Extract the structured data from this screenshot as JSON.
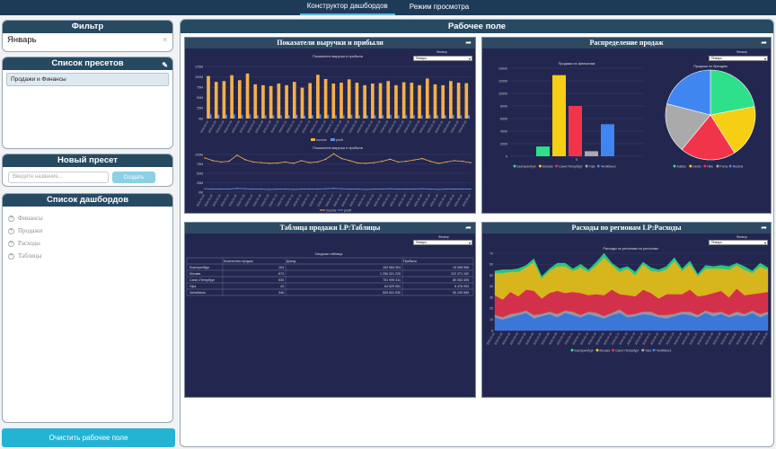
{
  "topnav": {
    "tabs": [
      {
        "label": "Конструктор дашбордов",
        "active": true
      },
      {
        "label": "Режим просмотра",
        "active": false
      }
    ]
  },
  "sidebar": {
    "filter": {
      "title": "Фильтр",
      "value": "Январь"
    },
    "presets": {
      "title": "Список пресетов",
      "items": [
        "Продажи и Финансы"
      ]
    },
    "new_preset": {
      "title": "Новый пресет",
      "placeholder": "Введите название...",
      "button": "Создать"
    },
    "dashboards": {
      "title": "Список дашбордов",
      "items": [
        "Финансы",
        "Продажи",
        "Расходы",
        "Таблицы"
      ]
    },
    "clear_button": "Очистить рабочее поле"
  },
  "workspace": {
    "title": "Рабочее поле",
    "widgets": {
      "revenue": {
        "title": "Показатели выручки и прибыли",
        "filter_label": "Фильтр",
        "filter_value": "Январь"
      },
      "distribution": {
        "title": "Распределение продаж",
        "filter_label": "Фильтр",
        "filter_value": "Январь"
      },
      "table": {
        "title": "Таблица продажи LP:Таблицы",
        "filter_label": "Фильтр",
        "filter_value": "Январь"
      },
      "expenses": {
        "title": "Расходы по регионам LP:Расходы",
        "filter_label": "Фильтр",
        "filter_value": "Январь"
      }
    }
  },
  "colors": {
    "income": "#f4b04a",
    "profit": "#5b8ee6",
    "widget_bg": "#232750",
    "header": "#274a63",
    "accent": "#25b3d4"
  },
  "regions": [
    "Екатеринбург",
    "Москва",
    "Санкт-Петербург",
    "Уфа",
    "Челябинск"
  ],
  "region_colors": [
    "#2ee08a",
    "#f6cf14",
    "#f2344a",
    "#aaaaaa",
    "#3f86f0"
  ],
  "chart_data": [
    {
      "type": "bar",
      "title": "Показатели выручки и прибыли",
      "series": [
        {
          "name": "income",
          "values": [
            102,
            88,
            90,
            104,
            92,
            108,
            82,
            80,
            78,
            84,
            80,
            88,
            74,
            85,
            105,
            95,
            84,
            86,
            94,
            86,
            80,
            84,
            85,
            90,
            80,
            87,
            86,
            80,
            96,
            82,
            80,
            90,
            86,
            85
          ]
        },
        {
          "name": "profit",
          "values": [
            10,
            9,
            9,
            10,
            9,
            10,
            8,
            8,
            8,
            8,
            8,
            9,
            7,
            8,
            10,
            9,
            8,
            8,
            9,
            8,
            8,
            8,
            8,
            9,
            8,
            8,
            8,
            8,
            9,
            8,
            8,
            9,
            8,
            8
          ]
        }
      ],
      "ylim": [
        0,
        125
      ],
      "yticks": [
        "125M",
        "100M",
        "75M",
        "50M",
        "25M",
        "0M"
      ],
      "legend": [
        "income",
        "profit"
      ],
      "xlabels": [
        "2023-01-01",
        "2023-01-02",
        "2023-01-03",
        "2023-01-04",
        "2023-01-05",
        "2023-01-06",
        "2023-01-07",
        "2023-01-08",
        "2023-01-09",
        "2023-01-10",
        "2023-01-11",
        "2023-01-12",
        "2023-01-13",
        "2023-01-14",
        "2023-01-15",
        "2023-01-16",
        "2023-01-17",
        "2023-01-18",
        "2023-01-19",
        "2023-01-20",
        "2023-01-21",
        "2023-01-22",
        "2023-01-23",
        "2023-01-24",
        "2023-01-25",
        "2023-01-26",
        "2023-01-27",
        "2023-01-28",
        "2023-01-29",
        "2023-01-30",
        "2023-01-31",
        "2023-02-01",
        "2023-02-02",
        "2023-02-03"
      ]
    },
    {
      "type": "line",
      "title": "Показатели выручки и прибыли",
      "series": [
        {
          "name": "income",
          "values": [
            100,
            92,
            88,
            90,
            108,
            95,
            88,
            86,
            84,
            85,
            88,
            84,
            92,
            86,
            88,
            96,
            112,
            98,
            92,
            85,
            84,
            86,
            90,
            96,
            88,
            90,
            94,
            98,
            90,
            84,
            88,
            92,
            90,
            86
          ]
        },
        {
          "name": "profit",
          "values": [
            10,
            9,
            9,
            9,
            11,
            10,
            9,
            9,
            8,
            9,
            9,
            8,
            9,
            9,
            9,
            10,
            11,
            10,
            9,
            9,
            8,
            9,
            9,
            10,
            9,
            9,
            9,
            10,
            9,
            8,
            9,
            9,
            9,
            9
          ]
        }
      ],
      "ylim": [
        0,
        125
      ],
      "yticks": [
        "100M",
        "75M",
        "50M",
        "25M",
        "0M"
      ],
      "legend": [
        "income",
        "profit"
      ]
    },
    {
      "type": "bar",
      "title": "Продажи по филиалам",
      "categories": [
        "Екатеринбург",
        "Москва",
        "Санкт-Петербург",
        "Уфа",
        "Челябинск"
      ],
      "values": [
        1550,
        12900,
        8000,
        800,
        5100
      ],
      "yticks": [
        "14000",
        "12000",
        "10000",
        "8000",
        "6000",
        "4000",
        "2000",
        "0"
      ],
      "ylim": [
        0,
        14000
      ],
      "xlabel": "0"
    },
    {
      "type": "pie",
      "title": "Продажи по брендам",
      "categories": [
        "Adidas",
        "Demix",
        "Nike",
        "Puma",
        "Reebok"
      ],
      "values": [
        22,
        19,
        20,
        18,
        21
      ],
      "colors": [
        "#2ee08a",
        "#f6cf14",
        "#f2344a",
        "#aaaaaa",
        "#3f86f0"
      ]
    },
    {
      "type": "table",
      "title": "Сводная таблица",
      "columns": [
        "",
        "Количество продаж",
        "Доход",
        "Прибыль"
      ],
      "rows": [
        [
          "Екатеринбург",
          "104",
          "152 984 304",
          "15 398 968"
        ],
        [
          "Москва",
          "873",
          "1 256 321 225",
          "122 371 152"
        ],
        [
          "Санкт-Петербург",
          "530",
          "751 999 311",
          "80 063 305"
        ],
        [
          "Уфа",
          "43",
          "64 529 061",
          "6 478 053"
        ],
        [
          "Челябинск",
          "346",
          "505 001 930",
          "50 139 989"
        ]
      ]
    },
    {
      "type": "area",
      "title": "Расходы по регионам по регионам",
      "series": [
        {
          "name": "Челябинск",
          "values": [
            12,
            10,
            12,
            14,
            16,
            11,
            13,
            15,
            12,
            16,
            14,
            12,
            15,
            13,
            11,
            14,
            16,
            12,
            13,
            15,
            14,
            12,
            11,
            13,
            15,
            14,
            12,
            16,
            13,
            15,
            12,
            14,
            13,
            16,
            12,
            15
          ]
        },
        {
          "name": "Уфа",
          "values": [
            2,
            2,
            3,
            2,
            2,
            3,
            2,
            2,
            3,
            2,
            3,
            2,
            2,
            3,
            2,
            2,
            3,
            2,
            2,
            2,
            3,
            2,
            3,
            2,
            2,
            3,
            2,
            2,
            3,
            2,
            2,
            3,
            2,
            2,
            3,
            2
          ]
        },
        {
          "name": "Санкт-Петербург",
          "values": [
            18,
            16,
            20,
            15,
            19,
            22,
            14,
            17,
            21,
            16,
            18,
            20,
            15,
            17,
            19,
            21,
            14,
            18,
            16,
            20,
            17,
            15,
            19,
            18,
            16,
            20,
            17,
            14,
            18,
            19,
            16,
            21,
            17,
            15,
            19,
            18
          ]
        },
        {
          "name": "Москва",
          "values": [
            20,
            24,
            18,
            22,
            20,
            26,
            18,
            20,
            22,
            24,
            19,
            23,
            21,
            26,
            34,
            22,
            20,
            24,
            19,
            23,
            20,
            24,
            22,
            30,
            21,
            23,
            18,
            24,
            22,
            20,
            25,
            21,
            23,
            19,
            24,
            20
          ]
        },
        {
          "name": "Екатеринбург",
          "values": [
            2,
            3,
            2,
            3,
            2,
            3,
            2,
            2,
            3,
            3,
            2,
            3,
            2,
            3,
            4,
            2,
            3,
            2,
            3,
            2,
            3,
            2,
            3,
            3,
            2,
            3,
            2,
            3,
            2,
            3,
            3,
            2,
            3,
            2,
            3,
            2
          ]
        }
      ],
      "ylim": [
        0,
        70
      ],
      "yticks": [
        "70",
        "60",
        "50",
        "40",
        "30",
        "20",
        "10",
        "0"
      ],
      "legend": [
        "Екатеринбург",
        "Москва",
        "Санкт-Петербург",
        "Уфа",
        "Челябинск"
      ]
    }
  ]
}
